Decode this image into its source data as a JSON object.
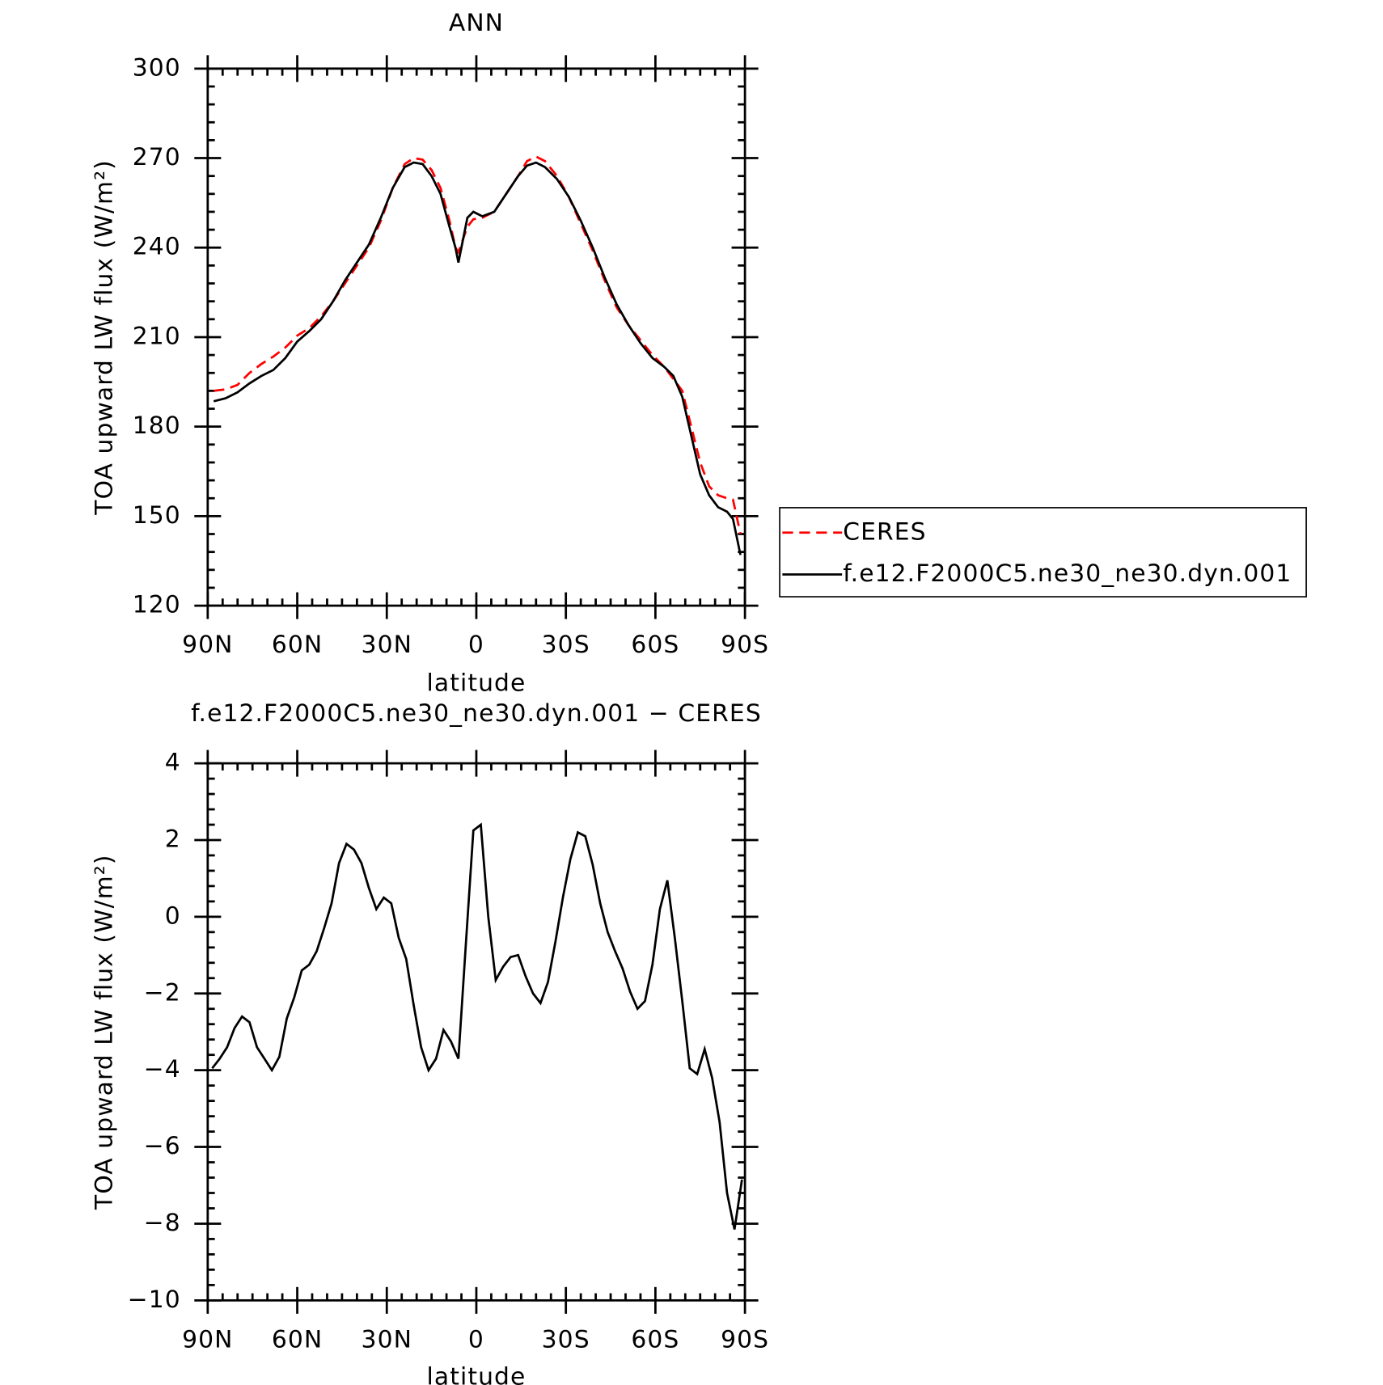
{
  "chart_data": [
    {
      "type": "line",
      "title": "ANN",
      "xlabel": "latitude",
      "ylabel": "TOA upward LW flux (W/m²)",
      "xlim": [
        90,
        -90
      ],
      "xticks": [
        {
          "value": 90,
          "label": "90N"
        },
        {
          "value": 60,
          "label": "60N"
        },
        {
          "value": 30,
          "label": "30N"
        },
        0,
        {
          "value": -30,
          "label": "30S"
        },
        {
          "value": -60,
          "label": "60S"
        },
        {
          "value": -90,
          "label": "90S"
        }
      ],
      "ylim": [
        120,
        300
      ],
      "yticks": [
        120,
        150,
        180,
        210,
        240,
        270,
        300
      ],
      "legend": "right",
      "x": [
        88,
        84,
        80,
        76,
        72,
        68,
        64,
        60,
        56,
        52,
        48,
        44,
        40,
        36,
        32,
        28,
        24,
        21,
        18,
        15,
        12,
        9,
        7,
        6,
        3,
        1,
        -2,
        -6,
        -10,
        -14,
        -17,
        -20,
        -23,
        -27,
        -31,
        -35,
        -39,
        -43,
        -47,
        -51,
        -55,
        -59,
        -63,
        -66,
        -69,
        -72,
        -75,
        -78,
        -81,
        -84,
        -86,
        -88.5
      ],
      "series": [
        {
          "name": "CERES",
          "color": "#ff0000",
          "linestyle": "dashed",
          "values": [
            192,
            192.5,
            194,
            198,
            201,
            203.5,
            206.5,
            210.5,
            213,
            217,
            222,
            228,
            234,
            240,
            249,
            260,
            268,
            270,
            269.5,
            266,
            260,
            249,
            240,
            238.5,
            247,
            249.5,
            250,
            252,
            258,
            264,
            269,
            270.5,
            269,
            264,
            257,
            248,
            239,
            229,
            220,
            214,
            209,
            204,
            200,
            196,
            192,
            180,
            168,
            160,
            157,
            156,
            155.5,
            144
          ]
        },
        {
          "name": "f.e12.F2000C5.ne30_ne30.dyn.001",
          "color": "#000000",
          "linestyle": "solid",
          "values": [
            188.5,
            189.5,
            191.5,
            194.5,
            197,
            199,
            203,
            208.5,
            212,
            216,
            222,
            229,
            235,
            241,
            250,
            260,
            267,
            268.5,
            268,
            264,
            258,
            247,
            240,
            235,
            250,
            252,
            250.5,
            252,
            258,
            264,
            267.5,
            268.5,
            267,
            263,
            257,
            249,
            240,
            230,
            221,
            214,
            208,
            203,
            200,
            197,
            190,
            177,
            164,
            157,
            153,
            151.5,
            149,
            137
          ]
        }
      ]
    },
    {
      "type": "line",
      "title": "f.e12.F2000C5.ne30_ne30.dyn.001 − CERES",
      "xlabel": "latitude",
      "ylabel": "TOA upward LW flux (W/m²)",
      "xlim": [
        90,
        -90
      ],
      "xticks": [
        {
          "value": 90,
          "label": "90N"
        },
        {
          "value": 60,
          "label": "60N"
        },
        {
          "value": 30,
          "label": "30N"
        },
        0,
        {
          "value": -30,
          "label": "30S"
        },
        {
          "value": -60,
          "label": "60S"
        },
        {
          "value": -90,
          "label": "90S"
        }
      ],
      "ylim": [
        -10,
        4
      ],
      "yticks": [
        {
          "value": -10,
          "label": "−10"
        },
        {
          "value": -8,
          "label": "−8"
        },
        {
          "value": -6,
          "label": "−6"
        },
        {
          "value": -4,
          "label": "−4"
        },
        {
          "value": -2,
          "label": "−2"
        },
        0,
        2,
        4
      ],
      "x": [
        88.5,
        86,
        83.5,
        81,
        78.5,
        76,
        73.5,
        71,
        68.5,
        66,
        63.5,
        61,
        58.5,
        56,
        53.5,
        51,
        48.5,
        46,
        43.5,
        41,
        38.5,
        36,
        33.5,
        31,
        28.5,
        26,
        23.5,
        21,
        18.5,
        16,
        13.5,
        11,
        8.5,
        6,
        3.5,
        1,
        -1.5,
        -4,
        -6.5,
        -9,
        -11.5,
        -14,
        -16.5,
        -19,
        -21.5,
        -24,
        -26.5,
        -29,
        -31.5,
        -34,
        -36.5,
        -39,
        -41.5,
        -44,
        -46.5,
        -49,
        -51.5,
        -54,
        -56.5,
        -59,
        -61.5,
        -64,
        -66.5,
        -69,
        -71.5,
        -74,
        -76.5,
        -79,
        -81.5,
        -84,
        -86.5,
        -89
      ],
      "series": [
        {
          "color": "#000000",
          "linestyle": "solid",
          "values": [
            -3.95,
            -3.7,
            -3.4,
            -2.9,
            -2.6,
            -2.75,
            -3.4,
            -3.7,
            -4.0,
            -3.65,
            -2.65,
            -2.1,
            -1.4,
            -1.25,
            -0.9,
            -0.3,
            0.35,
            1.4,
            1.9,
            1.75,
            1.4,
            0.75,
            0.2,
            0.5,
            0.35,
            -0.55,
            -1.1,
            -2.3,
            -3.4,
            -4.0,
            -3.7,
            -2.95,
            -3.25,
            -3.7,
            -0.7,
            2.25,
            2.4,
            0.0,
            -1.65,
            -1.3,
            -1.05,
            -1.0,
            -1.55,
            -2.0,
            -2.25,
            -1.7,
            -0.65,
            0.5,
            1.5,
            2.2,
            2.1,
            1.35,
            0.35,
            -0.4,
            -0.9,
            -1.35,
            -1.95,
            -2.4,
            -2.2,
            -1.25,
            0.2,
            0.95,
            -0.55,
            -2.2,
            -3.95,
            -4.1,
            -3.45,
            -4.2,
            -5.35,
            -7.2,
            -8.15,
            -6.85
          ]
        }
      ]
    }
  ]
}
